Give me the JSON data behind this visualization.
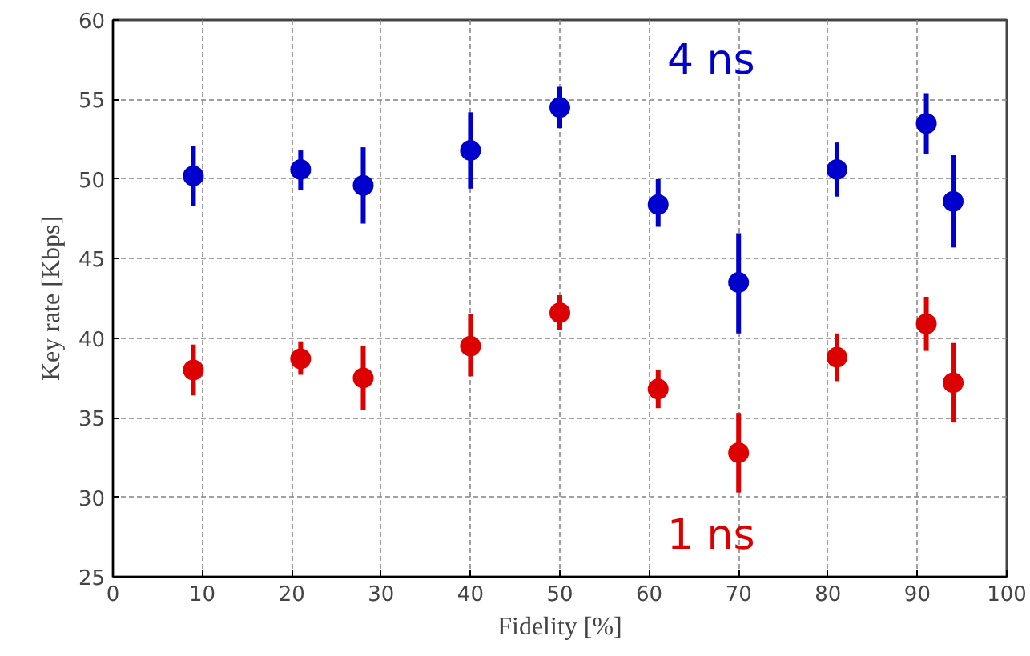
{
  "chart_data": {
    "type": "scatter",
    "xlabel": "Fidelity [%]",
    "ylabel": "Key rate [Kbps]",
    "x": [
      9,
      21,
      28,
      40,
      50,
      61,
      70,
      81,
      91,
      94
    ],
    "series": [
      {
        "name": "4 ns",
        "color": "#0000cc",
        "values": [
          50.2,
          50.6,
          49.6,
          51.8,
          54.5,
          48.4,
          43.5,
          50.6,
          53.5,
          48.6
        ],
        "errors": [
          [
            48.3,
            52.1
          ],
          [
            49.3,
            51.8
          ],
          [
            47.2,
            52.0
          ],
          [
            49.4,
            54.2
          ],
          [
            53.2,
            55.8
          ],
          [
            47.0,
            50.0
          ],
          [
            40.3,
            46.6
          ],
          [
            48.9,
            52.3
          ],
          [
            51.6,
            55.4
          ],
          [
            45.7,
            51.5
          ]
        ]
      },
      {
        "name": "1 ns",
        "color": "#dd0000",
        "values": [
          38.0,
          38.7,
          37.5,
          39.5,
          41.6,
          36.8,
          32.8,
          38.8,
          40.9,
          37.2
        ],
        "errors": [
          [
            36.4,
            39.6
          ],
          [
            37.7,
            39.8
          ],
          [
            35.5,
            39.5
          ],
          [
            37.6,
            41.5
          ],
          [
            40.5,
            42.7
          ],
          [
            35.6,
            38.0
          ],
          [
            30.3,
            35.3
          ],
          [
            37.3,
            40.3
          ],
          [
            39.2,
            42.6
          ],
          [
            34.7,
            39.7
          ]
        ]
      }
    ],
    "xlim": [
      0,
      100
    ],
    "ylim": [
      25,
      60
    ],
    "xticks": [
      0,
      10,
      20,
      30,
      40,
      50,
      60,
      70,
      80,
      90,
      100
    ],
    "yticks": [
      25,
      30,
      35,
      40,
      45,
      50,
      55,
      60
    ],
    "grid": true,
    "legend": false,
    "marker": "circle"
  }
}
